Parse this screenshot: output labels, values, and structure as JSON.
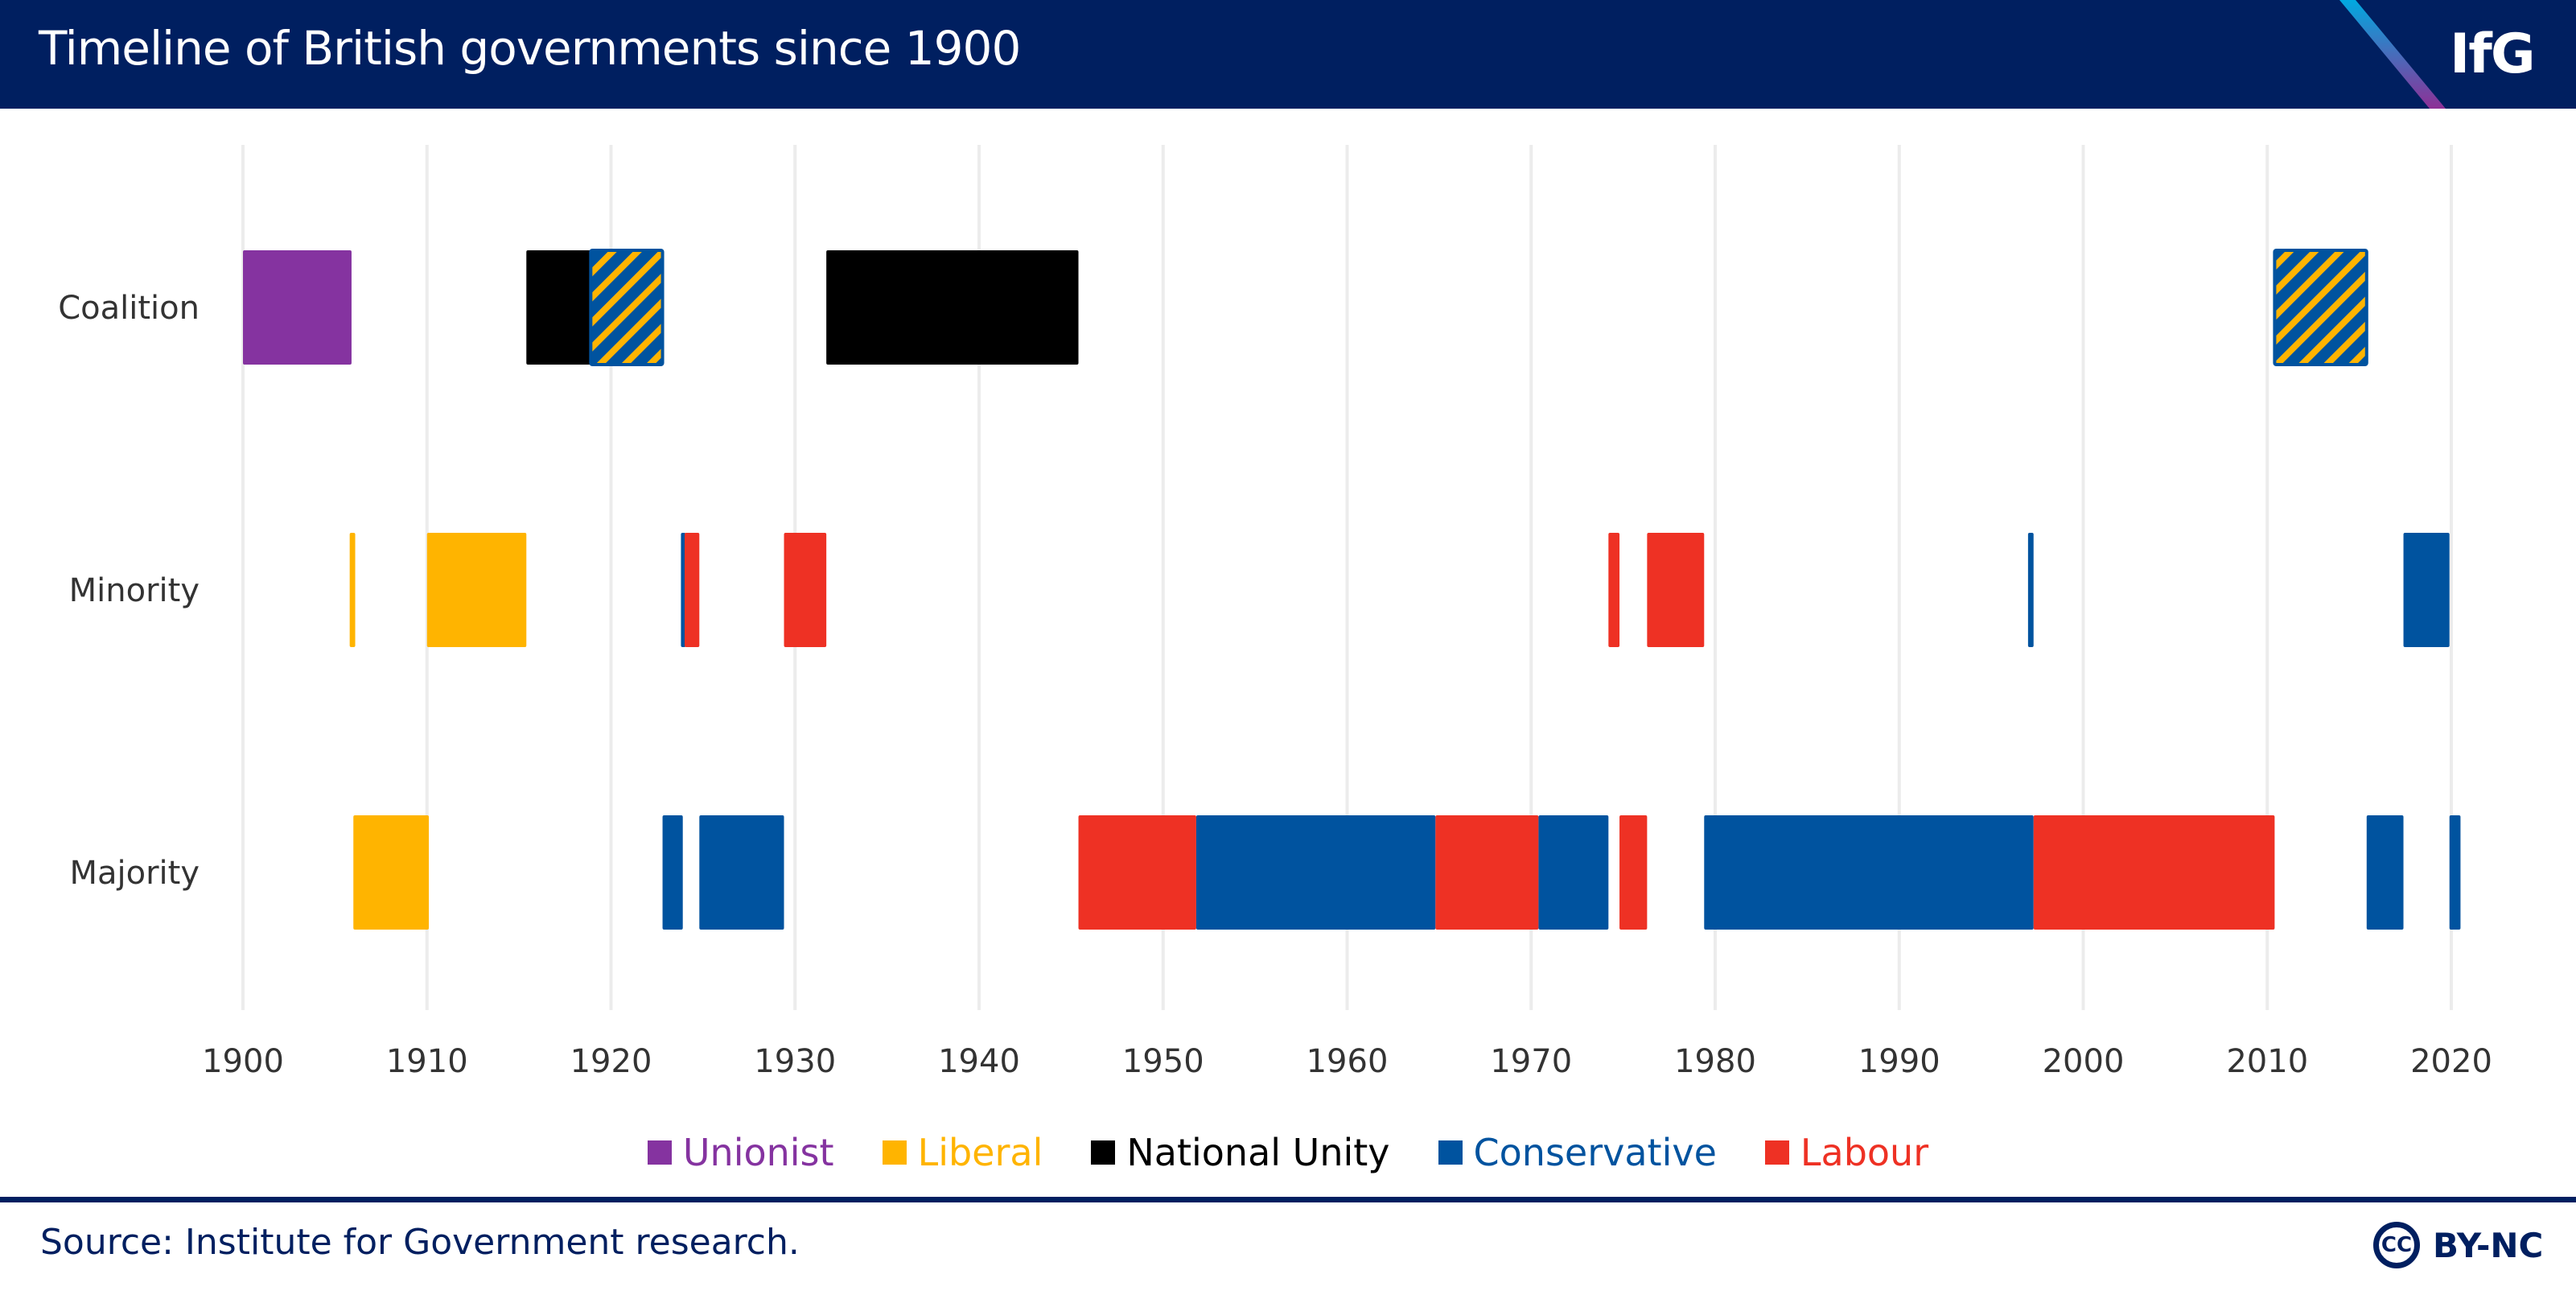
{
  "header": {
    "title": "Timeline of British governments since 1900",
    "logo": "IfG"
  },
  "footer": {
    "source": "Source: Institute for Government research.",
    "license_icon": "CC",
    "license": "BY-NC"
  },
  "chart_data": {
    "type": "timeline",
    "title": "Timeline of British governments since 1900",
    "xlim": [
      1900,
      2021
    ],
    "x_ticks": [
      1900,
      1910,
      1920,
      1930,
      1940,
      1950,
      1960,
      1970,
      1980,
      1990,
      2000,
      2010,
      2020
    ],
    "rows": [
      "Coalition",
      "Minority",
      "Majority"
    ],
    "colors": {
      "Unionist": "#8533a0",
      "Liberal": "#ffb400",
      "National Unity": "#000000",
      "Conservative": "#00539f",
      "Labour": "#ee3124",
      "Con-Lib": "hatched"
    },
    "legend": [
      "Unionist",
      "Liberal",
      "National Unity",
      "Conservative",
      "Labour"
    ],
    "legend_placement": "bottom",
    "grid": true,
    "segments": [
      {
        "row": "Coalition",
        "party": "Unionist",
        "start": 1900,
        "end": 1905.9
      },
      {
        "row": "Coalition",
        "party": "National Unity",
        "start": 1915.4,
        "end": 1918.9
      },
      {
        "row": "Coalition",
        "party": "Con-Lib",
        "start": 1918.9,
        "end": 1922.8
      },
      {
        "row": "Coalition",
        "party": "National Unity",
        "start": 1931.7,
        "end": 1945.4
      },
      {
        "row": "Coalition",
        "party": "Con-Lib",
        "start": 2010.4,
        "end": 2015.4
      },
      {
        "row": "Minority",
        "party": "Liberal",
        "start": 1905.8,
        "end": 1906.1
      },
      {
        "row": "Minority",
        "party": "Liberal",
        "start": 1910.0,
        "end": 1915.4
      },
      {
        "row": "Minority",
        "party": "Conservative",
        "start": 1923.8,
        "end": 1924.0
      },
      {
        "row": "Minority",
        "party": "Labour",
        "start": 1924.0,
        "end": 1924.8
      },
      {
        "row": "Minority",
        "party": "Labour",
        "start": 1929.4,
        "end": 1931.7
      },
      {
        "row": "Minority",
        "party": "Labour",
        "start": 1974.2,
        "end": 1974.8
      },
      {
        "row": "Minority",
        "party": "Labour",
        "start": 1976.3,
        "end": 1979.4
      },
      {
        "row": "Minority",
        "party": "Conservative",
        "start": 1997.0,
        "end": 1997.3
      },
      {
        "row": "Minority",
        "party": "Conservative",
        "start": 2017.4,
        "end": 2019.9
      },
      {
        "row": "Majority",
        "party": "Liberal",
        "start": 1906.0,
        "end": 1910.1
      },
      {
        "row": "Majority",
        "party": "Conservative",
        "start": 1922.8,
        "end": 1923.9
      },
      {
        "row": "Majority",
        "party": "Conservative",
        "start": 1924.8,
        "end": 1929.4
      },
      {
        "row": "Majority",
        "party": "Labour",
        "start": 1945.4,
        "end": 1951.8
      },
      {
        "row": "Majority",
        "party": "Conservative",
        "start": 1951.8,
        "end": 1964.8
      },
      {
        "row": "Majority",
        "party": "Labour",
        "start": 1964.8,
        "end": 1970.4
      },
      {
        "row": "Majority",
        "party": "Conservative",
        "start": 1970.4,
        "end": 1974.2
      },
      {
        "row": "Majority",
        "party": "Labour",
        "start": 1974.8,
        "end": 1976.3
      },
      {
        "row": "Majority",
        "party": "Conservative",
        "start": 1979.4,
        "end": 1997.3
      },
      {
        "row": "Majority",
        "party": "Labour",
        "start": 1997.3,
        "end": 2010.4
      },
      {
        "row": "Majority",
        "party": "Conservative",
        "start": 2015.4,
        "end": 2017.4
      },
      {
        "row": "Majority",
        "party": "Conservative",
        "start": 2019.9,
        "end": 2020.5
      }
    ]
  }
}
